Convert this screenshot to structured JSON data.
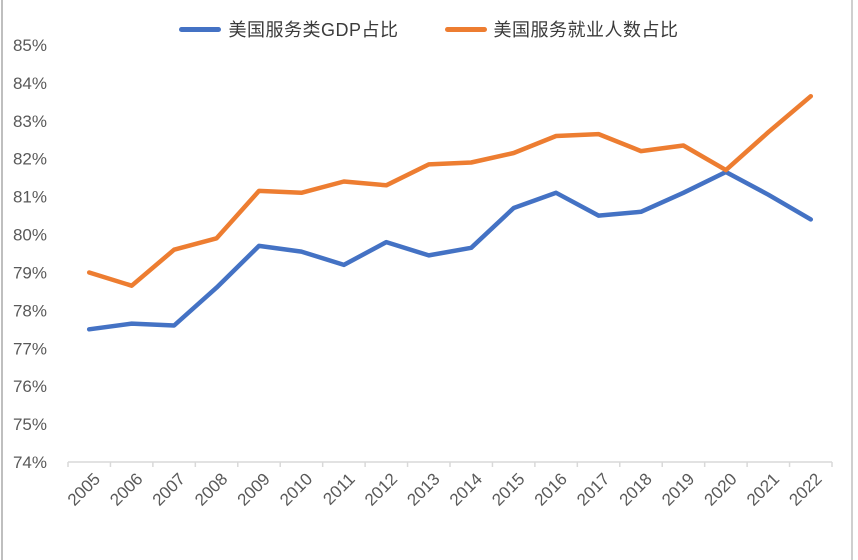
{
  "chart_data": {
    "type": "line",
    "x": [
      "2005",
      "2006",
      "2007",
      "2008",
      "2009",
      "2010",
      "2011",
      "2012",
      "2013",
      "2014",
      "2015",
      "2016",
      "2017",
      "2018",
      "2019",
      "2020",
      "2021",
      "2022"
    ],
    "series": [
      {
        "name": "美国服务类GDP占比",
        "color": "#4472C4",
        "values": [
          77.5,
          77.65,
          77.6,
          78.6,
          79.7,
          79.55,
          79.2,
          79.8,
          79.45,
          79.65,
          80.7,
          81.1,
          80.5,
          80.6,
          81.1,
          81.65,
          81.05,
          80.4
        ]
      },
      {
        "name": "美国服务就业人数占比",
        "color": "#ED7D31",
        "values": [
          79.0,
          78.65,
          79.6,
          79.9,
          81.15,
          81.1,
          81.4,
          81.3,
          81.85,
          81.9,
          82.15,
          82.6,
          82.65,
          82.2,
          82.35,
          81.7,
          82.7,
          83.65
        ]
      }
    ],
    "title": "",
    "xlabel": "",
    "ylabel": "",
    "ylim": [
      74,
      85
    ],
    "ytick_labels": [
      "74%",
      "75%",
      "76%",
      "77%",
      "78%",
      "79%",
      "80%",
      "81%",
      "82%",
      "83%",
      "84%",
      "85%"
    ],
    "legend_position": "top",
    "grid": false,
    "axis_line_color": "#d9d9d9",
    "frame_line_color": "#bfbfbf",
    "tick_label_color": "#595959"
  }
}
